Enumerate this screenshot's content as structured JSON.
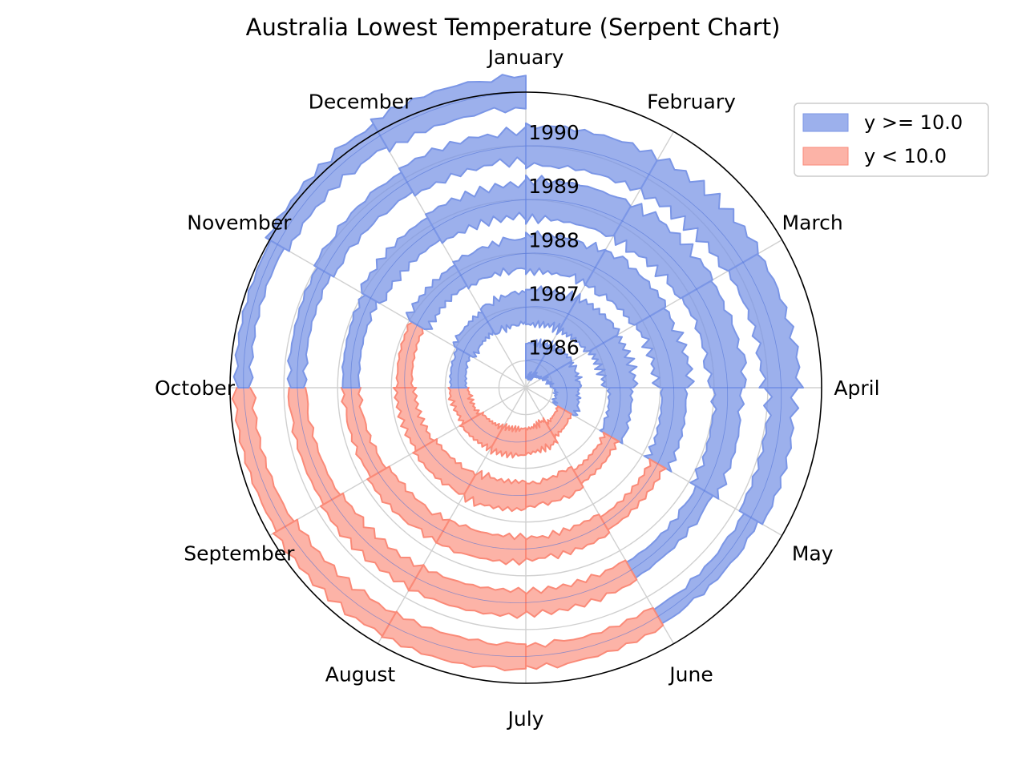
{
  "chart_data": {
    "type": "area",
    "projection": "polar",
    "title": "Australia Lowest Temperature (Serpent Chart)",
    "threshold": 10.0,
    "theta_labels": [
      "January",
      "February",
      "March",
      "April",
      "May",
      "June",
      "July",
      "August",
      "September",
      "October",
      "November",
      "December"
    ],
    "radial_tick_labels": [
      "1986",
      "1987",
      "1988",
      "1989",
      "1990"
    ],
    "radial_tick_values": [
      1986,
      1987,
      1988,
      1989,
      1990
    ],
    "radial_lim": [
      1985.5,
      1991.0
    ],
    "series": [
      {
        "name": "y >= 10.0",
        "color": "#7b96e6"
      },
      {
        "name": "y < 10.0",
        "color": "#fa8a78"
      }
    ],
    "legend_position": "top-right",
    "grid": true,
    "monthly_mean_min_temp": {
      "x": [
        "1986-01",
        "1986-02",
        "1986-03",
        "1986-04",
        "1986-05",
        "1986-06",
        "1986-07",
        "1986-08",
        "1986-09",
        "1986-10",
        "1986-11",
        "1986-12",
        "1987-01",
        "1987-02",
        "1987-03",
        "1987-04",
        "1987-05",
        "1987-06",
        "1987-07",
        "1987-08",
        "1987-09",
        "1987-10",
        "1987-11",
        "1987-12",
        "1988-01",
        "1988-02",
        "1988-03",
        "1988-04",
        "1988-05",
        "1988-06",
        "1988-07",
        "1988-08",
        "1988-09",
        "1988-10",
        "1988-11",
        "1988-12",
        "1989-01",
        "1989-02",
        "1989-03",
        "1989-04",
        "1989-05",
        "1989-06",
        "1989-07",
        "1989-08",
        "1989-09",
        "1989-10",
        "1989-11",
        "1989-12",
        "1990-01",
        "1990-02",
        "1990-03",
        "1990-04",
        "1990-05",
        "1990-06",
        "1990-07",
        "1990-08",
        "1990-09",
        "1990-10",
        "1990-11",
        "1990-12"
      ],
      "y": [
        15.2,
        15.6,
        14.0,
        12.4,
        9.6,
        7.3,
        6.8,
        7.4,
        8.9,
        10.2,
        12.3,
        14.2,
        15.4,
        16.0,
        14.5,
        12.1,
        9.8,
        7.6,
        6.5,
        7.3,
        8.8,
        9.9,
        12.4,
        13.9,
        16.0,
        16.4,
        15.1,
        12.6,
        9.9,
        8.0,
        7.1,
        7.5,
        9.3,
        10.4,
        12.9,
        14.6,
        16.4,
        16.5,
        15.3,
        13.5,
        10.9,
        7.8,
        7.2,
        7.6,
        9.0,
        10.3,
        12.1,
        14.2,
        16.3,
        16.6,
        15.6,
        13.2,
        10.6,
        8.1,
        7.0,
        7.5,
        8.9,
        10.1,
        12.6,
        14.8
      ]
    }
  }
}
